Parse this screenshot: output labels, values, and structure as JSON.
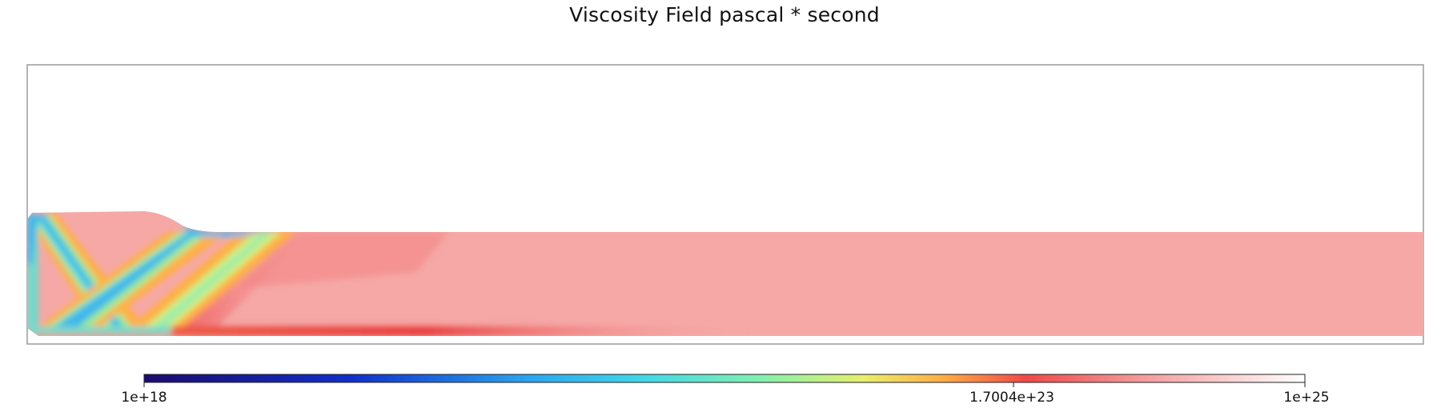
{
  "chart_data": {
    "type": "heatmap",
    "title": "Viscosity Field pascal * second",
    "colorbar": {
      "min_label": "1e+18",
      "mid_label": "1.7004e+23",
      "max_label": "1e+25",
      "min": 1e+18,
      "mid": 1.7004e+23,
      "max": 1e+25,
      "scale": "log",
      "colormap": [
        "#1c0a6e",
        "#1030cc",
        "#2aa4f0",
        "#40d8e8",
        "#80f0b0",
        "#e8ef6a",
        "#ffaa44",
        "#f04848",
        "#f49b9b",
        "#ffffff"
      ]
    },
    "field_colors": {
      "background_rock": "#f5a8a6",
      "weak_zone_low": "#38b8ee",
      "weak_zone_mid": "#8ee8a8",
      "weak_zone_high": "#f8e070",
      "transition": "#f06050"
    }
  }
}
